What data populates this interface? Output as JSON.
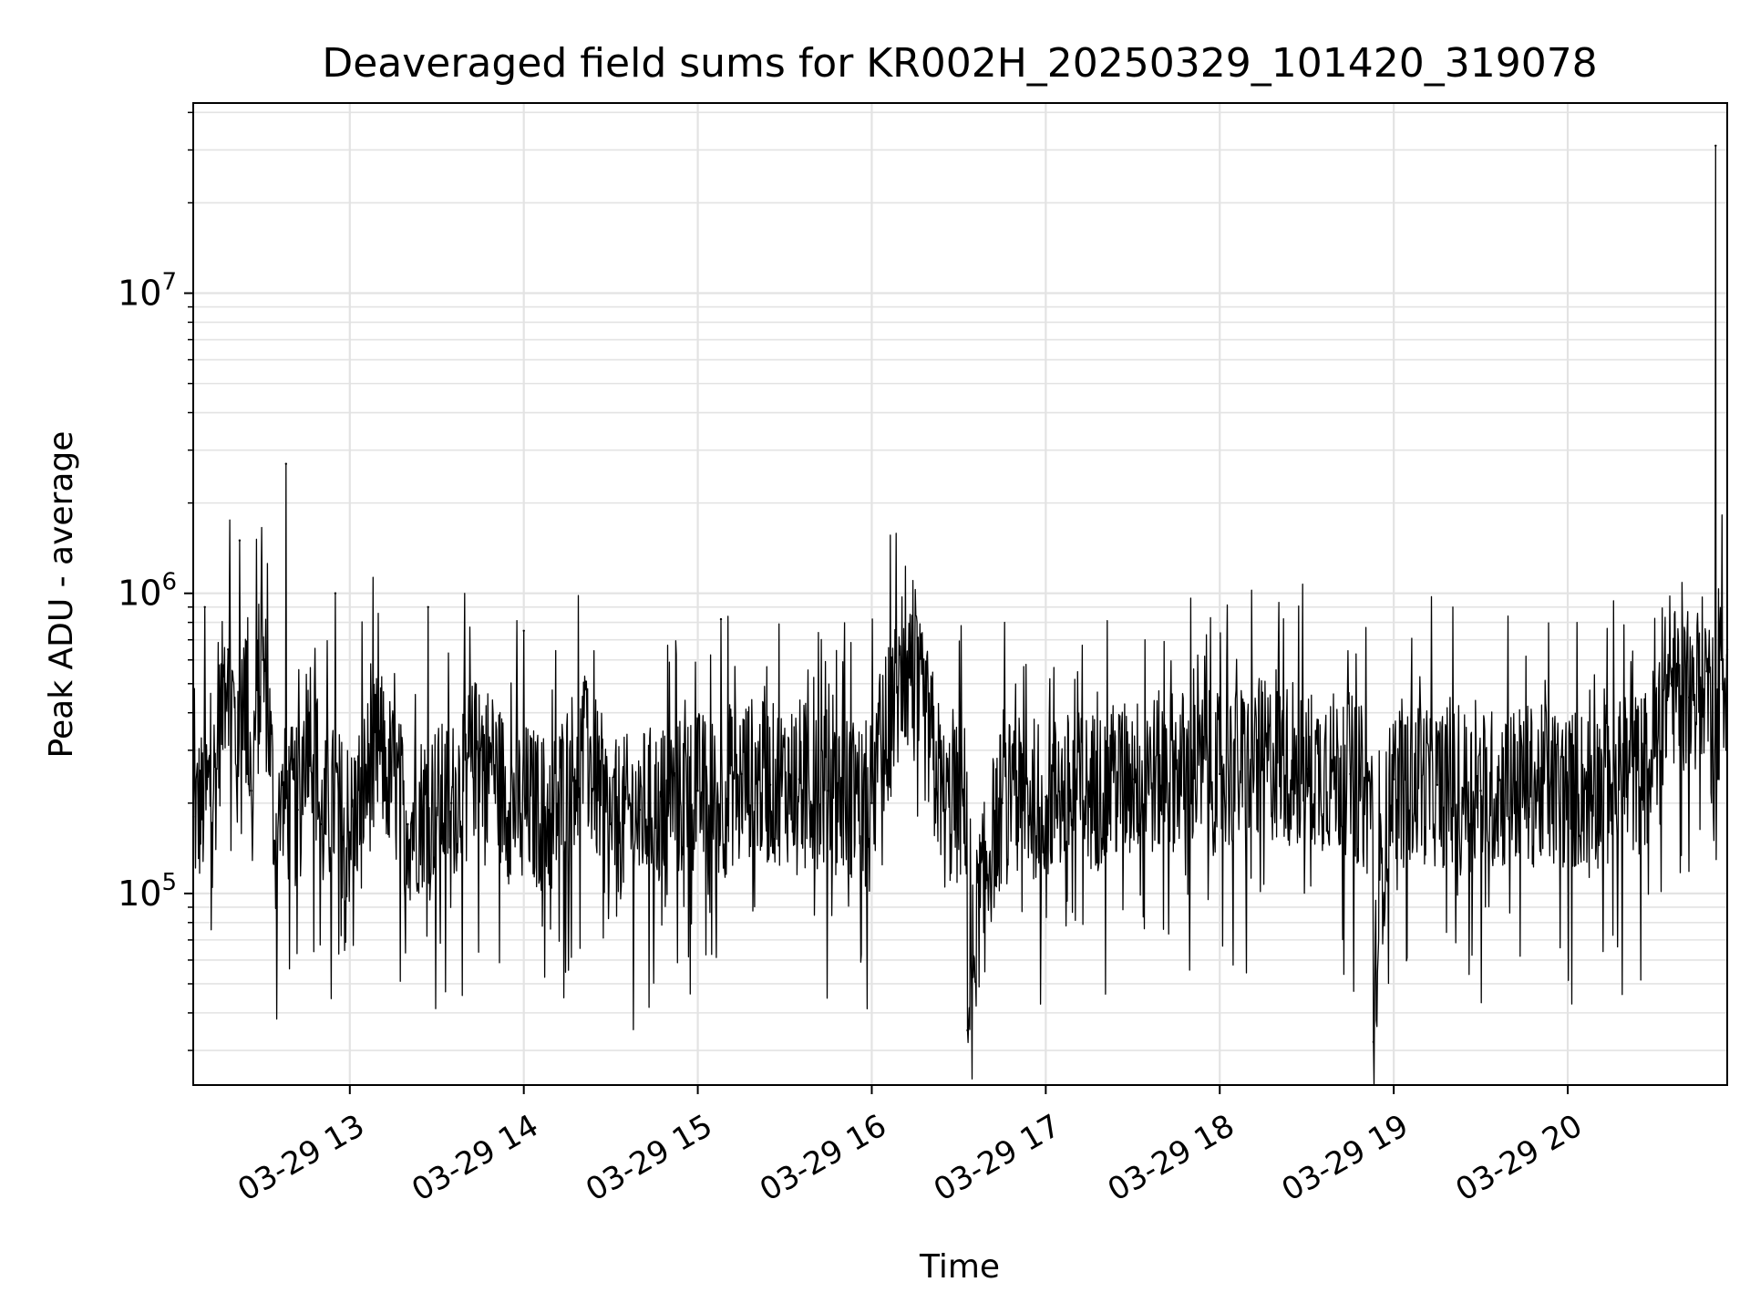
{
  "chart_data": {
    "type": "line",
    "title": "Deaveraged field sums for KR002H_20250329_101420_319078",
    "xlabel": "Time",
    "ylabel": "Peak ADU - average",
    "x_ticks": [
      "03-29 13",
      "03-29 14",
      "03-29 15",
      "03-29 16",
      "03-29 17",
      "03-29 18",
      "03-29 19",
      "03-29 20"
    ],
    "y_ticks": [
      {
        "base": "10",
        "exp": "5"
      },
      {
        "base": "10",
        "exp": "6"
      },
      {
        "base": "10",
        "exp": "7"
      }
    ],
    "xlim": [
      "2025-03-29 12:06",
      "2025-03-29 20:55"
    ],
    "ylim": [
      23000,
      43000000
    ],
    "y_scale": "log",
    "grid": true,
    "line_color": "#000000",
    "series": [
      {
        "values": [
          [
            "2025-03-29 12:06",
            180000
          ],
          [
            "2025-03-29 12:10",
            900000
          ],
          [
            "2025-03-29 12:14",
            260000
          ],
          [
            "2025-03-29 12:18",
            650000
          ],
          [
            "2025-03-29 12:22",
            1500000
          ],
          [
            "2025-03-29 12:26",
            220000
          ],
          [
            "2025-03-29 12:30",
            600000
          ],
          [
            "2025-03-29 12:34",
            150000
          ],
          [
            "2025-03-29 12:38",
            2700000
          ],
          [
            "2025-03-29 12:42",
            190000
          ],
          [
            "2025-03-29 12:46",
            400000
          ],
          [
            "2025-03-29 12:50",
            170000
          ],
          [
            "2025-03-29 12:55",
            1000000
          ],
          [
            "2025-03-29 13:00",
            160000
          ],
          [
            "2025-03-29 13:10",
            300000
          ],
          [
            "2025-03-29 13:20",
            170000
          ],
          [
            "2025-03-29 13:27",
            900000
          ],
          [
            "2025-03-29 13:35",
            200000
          ],
          [
            "2025-03-29 13:45",
            300000
          ],
          [
            "2025-03-29 13:55",
            200000
          ],
          [
            "2025-03-29 14:00",
            750000
          ],
          [
            "2025-03-29 14:10",
            180000
          ],
          [
            "2025-03-29 14:20",
            300000
          ],
          [
            "2025-03-29 14:30",
            170000
          ],
          [
            "2025-03-29 14:40",
            190000
          ],
          [
            "2025-03-29 14:50",
            200000
          ],
          [
            "2025-03-29 15:00",
            220000
          ],
          [
            "2025-03-29 15:08",
            820000
          ],
          [
            "2025-03-29 15:15",
            250000
          ],
          [
            "2025-03-29 15:25",
            230000
          ],
          [
            "2025-03-29 15:35",
            240000
          ],
          [
            "2025-03-29 15:45",
            220000
          ],
          [
            "2025-03-29 16:00",
            200000
          ],
          [
            "2025-03-29 16:12",
            550000
          ],
          [
            "2025-03-29 16:25",
            190000
          ],
          [
            "2025-03-29 16:33",
            35000
          ],
          [
            "2025-03-29 16:45",
            200000
          ],
          [
            "2025-03-29 17:00",
            210000
          ],
          [
            "2025-03-29 17:15",
            220000
          ],
          [
            "2025-03-29 17:30",
            240000
          ],
          [
            "2025-03-29 17:45",
            260000
          ],
          [
            "2025-03-29 18:00",
            250000
          ],
          [
            "2025-03-29 18:15",
            280000
          ],
          [
            "2025-03-29 18:30",
            260000
          ],
          [
            "2025-03-29 18:45",
            250000
          ],
          [
            "2025-03-29 18:53",
            32000
          ],
          [
            "2025-03-29 19:00",
            240000
          ],
          [
            "2025-03-29 19:15",
            230000
          ],
          [
            "2025-03-29 19:30",
            220000
          ],
          [
            "2025-03-29 19:45",
            230000
          ],
          [
            "2025-03-29 20:00",
            220000
          ],
          [
            "2025-03-29 20:15",
            230000
          ],
          [
            "2025-03-29 20:28",
            260000
          ],
          [
            "2025-03-29 20:35",
            500000
          ],
          [
            "2025-03-29 20:42",
            450000
          ],
          [
            "2025-03-29 20:48",
            550000
          ],
          [
            "2025-03-29 20:51",
            31000000
          ],
          [
            "2025-03-29 20:53",
            600000
          ],
          [
            "2025-03-29 20:55",
            650000
          ]
        ]
      }
    ]
  }
}
